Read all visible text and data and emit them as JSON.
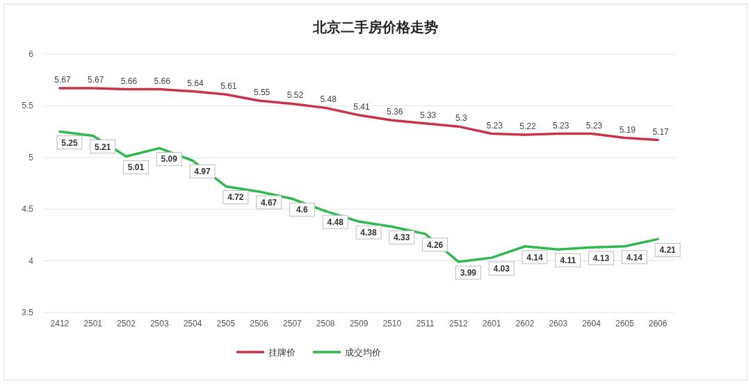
{
  "chart_data": {
    "type": "line",
    "title": "北京二手房价格走势",
    "categories": [
      "2412",
      "2501",
      "2502",
      "2503",
      "2504",
      "2505",
      "2506",
      "2507",
      "2508",
      "2509",
      "2510",
      "2511",
      "2512",
      "2601",
      "2602",
      "2603",
      "2604",
      "2605",
      "2606"
    ],
    "series": [
      {
        "name": "挂牌价",
        "color": "#c8334a",
        "values": [
          5.67,
          5.67,
          5.66,
          5.66,
          5.64,
          5.61,
          5.55,
          5.52,
          5.48,
          5.41,
          5.36,
          5.33,
          5.3,
          5.23,
          5.22,
          5.23,
          5.23,
          5.19,
          5.17
        ]
      },
      {
        "name": "成交均价",
        "color": "#2eb84f",
        "values": [
          5.25,
          5.21,
          5.01,
          5.09,
          4.97,
          4.72,
          4.67,
          4.6,
          4.48,
          4.38,
          4.33,
          4.26,
          3.99,
          4.03,
          4.14,
          4.11,
          4.13,
          4.14,
          4.21
        ]
      }
    ],
    "ylim": [
      3.5,
      6
    ],
    "yticks": [
      3.5,
      4,
      4.5,
      5,
      5.5,
      6
    ],
    "grid": "y",
    "legend": "bottom",
    "data_labels": true
  }
}
